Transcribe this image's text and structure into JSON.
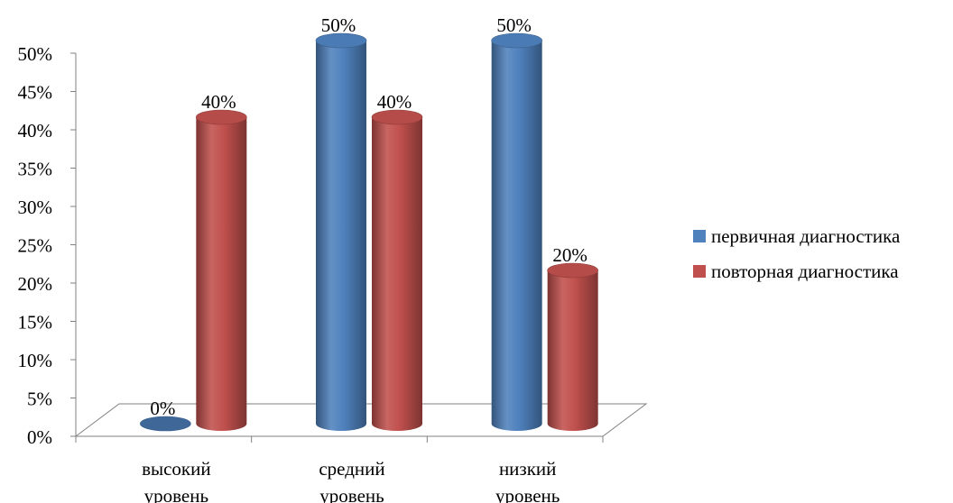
{
  "chart_data": {
    "type": "bar",
    "title": "",
    "xlabel": "",
    "ylabel": "",
    "categories": [
      [
        "высокий",
        "уровень"
      ],
      [
        "средний",
        "уровень"
      ],
      [
        "низкий",
        "уровень"
      ]
    ],
    "series": [
      {
        "name": "первичная диагностика",
        "values": [
          0,
          50,
          50
        ],
        "labels": [
          "0%",
          "50%",
          "50%"
        ],
        "color": "#4F81BD"
      },
      {
        "name": "повторная диагностика",
        "values": [
          40,
          40,
          20
        ],
        "labels": [
          "40%",
          "40%",
          "20%"
        ],
        "color": "#C0504D"
      }
    ],
    "ylim": [
      0,
      50
    ],
    "yticks": [
      "0%",
      "5%",
      "10%",
      "15%",
      "20%",
      "25%",
      "30%",
      "35%",
      "40%",
      "45%",
      "50%"
    ],
    "grid": false,
    "legend": "right",
    "style": "3d-cylinder"
  }
}
